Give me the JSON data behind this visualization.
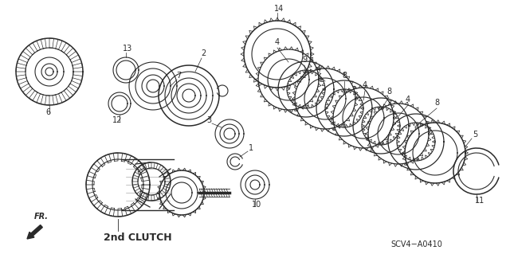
{
  "bg_color": "#ffffff",
  "line_color": "#2a2a2a",
  "diagram_code": "SCV4−A0410",
  "label_2nd_clutch": "2nd CLUTCH",
  "fr_label": "FR."
}
